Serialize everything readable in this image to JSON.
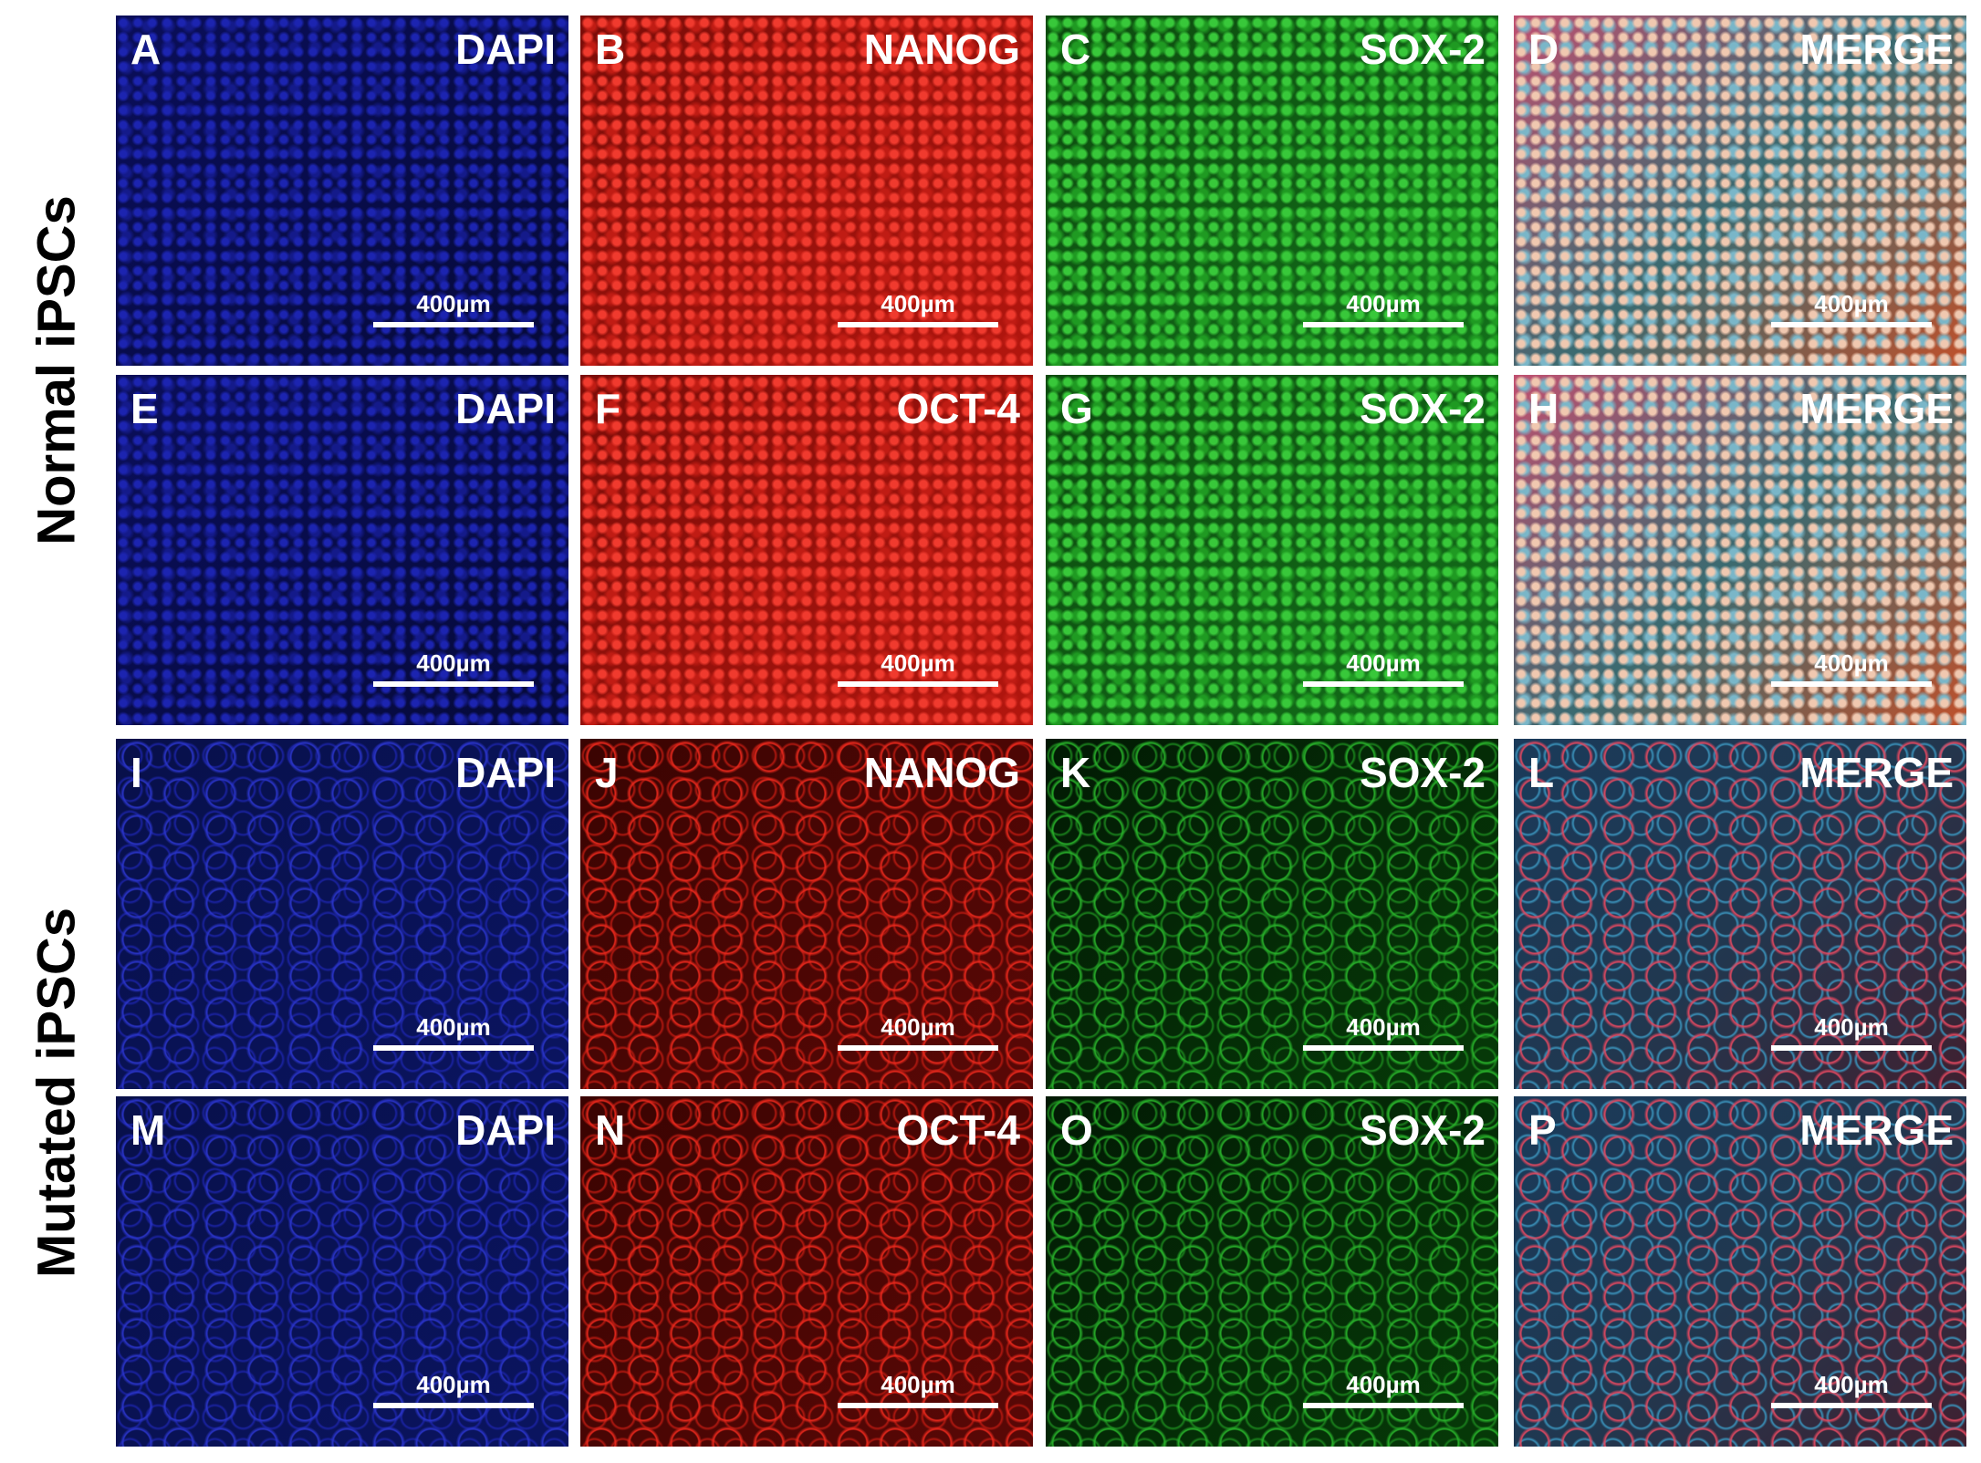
{
  "row_labels": [
    "Normal iPSCs",
    "Mutated iPSCs"
  ],
  "panels": [
    {
      "letter": "A",
      "stain": "DAPI",
      "scale": "400µm"
    },
    {
      "letter": "B",
      "stain": "NANOG",
      "scale": "400µm"
    },
    {
      "letter": "C",
      "stain": "SOX-2",
      "scale": "400µm"
    },
    {
      "letter": "D",
      "stain": "MERGE",
      "scale": "400µm"
    },
    {
      "letter": "E",
      "stain": "DAPI",
      "scale": "400µm"
    },
    {
      "letter": "F",
      "stain": "OCT-4",
      "scale": "400µm"
    },
    {
      "letter": "G",
      "stain": "SOX-2",
      "scale": "400µm"
    },
    {
      "letter": "H",
      "stain": "MERGE",
      "scale": "400µm"
    },
    {
      "letter": "I",
      "stain": "DAPI",
      "scale": "400µm"
    },
    {
      "letter": "J",
      "stain": "NANOG",
      "scale": "400µm"
    },
    {
      "letter": "K",
      "stain": "SOX-2",
      "scale": "400µm"
    },
    {
      "letter": "L",
      "stain": "MERGE",
      "scale": "400µm"
    },
    {
      "letter": "M",
      "stain": "DAPI",
      "scale": "400µm"
    },
    {
      "letter": "N",
      "stain": "OCT-4",
      "scale": "400µm"
    },
    {
      "letter": "O",
      "stain": "SOX-2",
      "scale": "400µm"
    },
    {
      "letter": "P",
      "stain": "MERGE",
      "scale": "400µm"
    }
  ]
}
